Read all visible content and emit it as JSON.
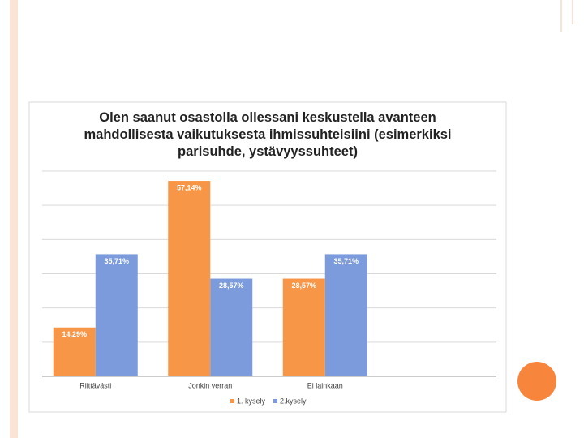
{
  "chart_data": {
    "type": "bar",
    "title": "Olen saanut osastolla ollessani keskustella avanteen mahdollisesta vaikutuksesta ihmissuhteisiini (esimerkiksi parisuhde, ystävyyssuhteet)",
    "categories": [
      "Riittävästi",
      "Jonkin verran",
      "Ei lainkaan"
    ],
    "series": [
      {
        "name": "1. kysely",
        "color": "#f79646",
        "values": [
          14.29,
          57.14,
          28.57
        ],
        "value_labels": [
          "14,29%",
          "57,14%",
          "28,57%"
        ]
      },
      {
        "name": "2.kysely",
        "color": "#7b9bdc",
        "values": [
          35.71,
          28.57,
          35.71
        ],
        "value_labels": [
          "35,71%",
          "28,57%",
          "35,71%"
        ]
      }
    ],
    "ylim": [
      0,
      60
    ],
    "yticks": [
      0,
      10,
      20,
      30,
      40,
      50,
      60
    ],
    "grid": true,
    "legend": "bottom"
  }
}
